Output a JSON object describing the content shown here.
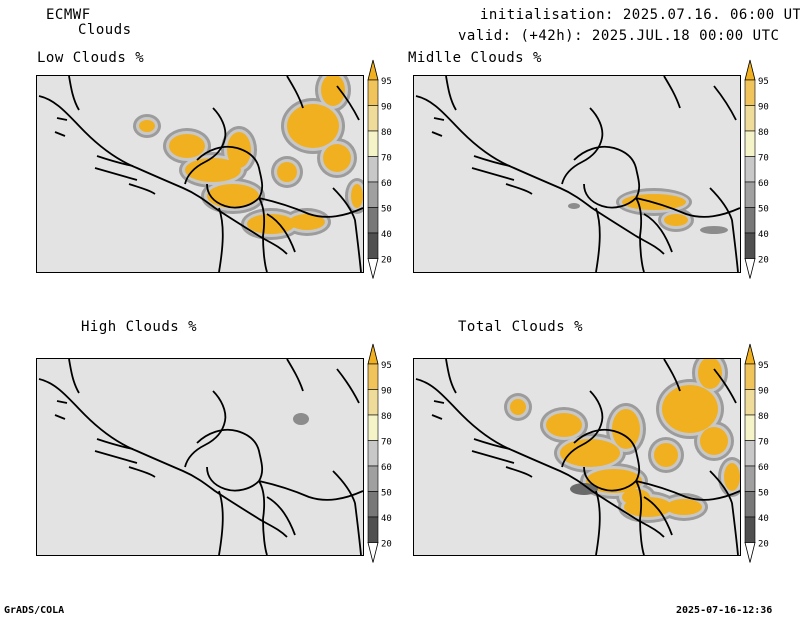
{
  "header": {
    "model": "ECMWF",
    "product": "Clouds",
    "init": "initialisation: 2025.07.16. 06:00 UTC",
    "valid": "valid: (+42h): 2025.JUL.18 00:00 UTC"
  },
  "panels": [
    {
      "title": "Low Clouds %"
    },
    {
      "title": "Midlle Clouds %"
    },
    {
      "title": "High Clouds %"
    },
    {
      "title": "Total Clouds %"
    }
  ],
  "colorbar": {
    "levels": [
      "95",
      "90",
      "80",
      "70",
      "60",
      "50",
      "40",
      "20"
    ],
    "colors": [
      "#f0b020",
      "#f0c45a",
      "#f0dc9a",
      "#f4f4c8",
      "#c8c8c8",
      "#a0a0a0",
      "#787878",
      "#505050",
      "#ffffff"
    ]
  },
  "footer": {
    "left": "GrADS/COLA",
    "right": "2025-07-16-12:36"
  }
}
